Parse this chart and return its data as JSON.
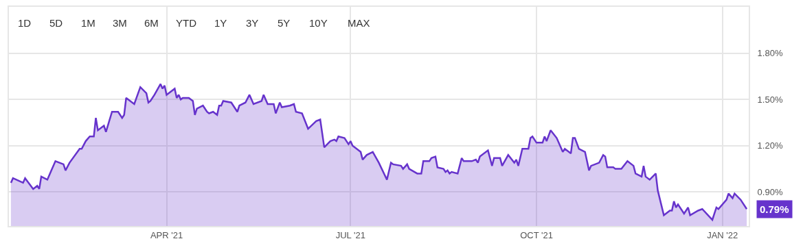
{
  "chart_data": {
    "type": "area",
    "annotations": [
      "1D",
      "5D",
      "1M",
      "3M",
      "6M",
      "YTD",
      "1Y",
      "3Y",
      "5Y",
      "10Y",
      "MAX",
      {
        "text": "0.79%",
        "x": "2022-01-13",
        "y": 0.79
      }
    ],
    "x": [
      "2021-01-14",
      "2021-01-15",
      "2021-01-20",
      "2021-01-21",
      "2021-01-25",
      "2021-01-27",
      "2021-01-28",
      "2021-01-29",
      "2021-02-01",
      "2021-02-03",
      "2021-02-05",
      "2021-02-09",
      "2021-02-10",
      "2021-02-12",
      "2021-02-17",
      "2021-02-18",
      "2021-02-20",
      "2021-02-22",
      "2021-02-24",
      "2021-02-25",
      "2021-02-26",
      "2021-03-01",
      "2021-03-02",
      "2021-03-05",
      "2021-03-08",
      "2021-03-10",
      "2021-03-11",
      "2021-03-12",
      "2021-03-16",
      "2021-03-19",
      "2021-03-22",
      "2021-03-23",
      "2021-03-24",
      "2021-03-26",
      "2021-03-29",
      "2021-03-30",
      "2021-03-31",
      "2021-04-01",
      "2021-04-05",
      "2021-04-06",
      "2021-04-07",
      "2021-04-08",
      "2021-04-09",
      "2021-04-12",
      "2021-04-14",
      "2021-04-15",
      "2021-04-16",
      "2021-04-19",
      "2021-04-21",
      "2021-04-22",
      "2021-04-24",
      "2021-04-26",
      "2021-04-27",
      "2021-04-28",
      "2021-04-29",
      "2021-05-03",
      "2021-05-06",
      "2021-05-07",
      "2021-05-10",
      "2021-05-12",
      "2021-05-14",
      "2021-05-18",
      "2021-05-19",
      "2021-05-21",
      "2021-05-24",
      "2021-05-25",
      "2021-05-27",
      "2021-05-28",
      "2021-06-01",
      "2021-06-03",
      "2021-06-04",
      "2021-06-07",
      "2021-06-10",
      "2021-06-14",
      "2021-06-16",
      "2021-06-18",
      "2021-06-21",
      "2021-06-23",
      "2021-06-24",
      "2021-06-25",
      "2021-06-28",
      "2021-06-30",
      "2021-07-01",
      "2021-07-02",
      "2021-07-06",
      "2021-07-07",
      "2021-07-09",
      "2021-07-12",
      "2021-07-15",
      "2021-07-19",
      "2021-07-21",
      "2021-07-22",
      "2021-07-26",
      "2021-07-27",
      "2021-07-29",
      "2021-07-30",
      "2021-08-03",
      "2021-08-05",
      "2021-08-06",
      "2021-08-09",
      "2021-08-10",
      "2021-08-12",
      "2021-08-13",
      "2021-08-16",
      "2021-08-17",
      "2021-08-18",
      "2021-08-19",
      "2021-08-20",
      "2021-08-23",
      "2021-08-25",
      "2021-08-26",
      "2021-08-30",
      "2021-09-01",
      "2021-09-02",
      "2021-09-03",
      "2021-09-07",
      "2021-09-09",
      "2021-09-10",
      "2021-09-13",
      "2021-09-14",
      "2021-09-17",
      "2021-09-20",
      "2021-09-21",
      "2021-09-22",
      "2021-09-24",
      "2021-09-27",
      "2021-09-28",
      "2021-09-29",
      "2021-10-01",
      "2021-10-04",
      "2021-10-05",
      "2021-10-06",
      "2021-10-08",
      "2021-10-11",
      "2021-10-14",
      "2021-10-15",
      "2021-10-18",
      "2021-10-19",
      "2021-10-20",
      "2021-10-22",
      "2021-10-25",
      "2021-10-27",
      "2021-10-28",
      "2021-11-01",
      "2021-11-03",
      "2021-11-04",
      "2021-11-05",
      "2021-11-08",
      "2021-11-09",
      "2021-11-12",
      "2021-11-15",
      "2021-11-18",
      "2021-11-19",
      "2021-11-22",
      "2021-11-23",
      "2021-11-24",
      "2021-11-26",
      "2021-11-29",
      "2021-11-30",
      "2021-12-03",
      "2021-12-06",
      "2021-12-07",
      "2021-12-08",
      "2021-12-09",
      "2021-12-10",
      "2021-12-13",
      "2021-12-15",
      "2021-12-16",
      "2021-12-20",
      "2021-12-22",
      "2021-12-27",
      "2021-12-29",
      "2021-12-30",
      "2022-01-03",
      "2022-01-04",
      "2022-01-06",
      "2022-01-07",
      "2022-01-10",
      "2022-01-13"
    ],
    "series": [
      {
        "color": "#6633cc",
        "values": [
          0.96,
          0.99,
          0.96,
          0.99,
          0.92,
          0.94,
          0.92,
          1.0,
          0.98,
          1.04,
          1.1,
          1.08,
          1.04,
          1.09,
          1.18,
          1.18,
          1.23,
          1.26,
          1.26,
          1.38,
          1.3,
          1.33,
          1.29,
          1.42,
          1.42,
          1.38,
          1.4,
          1.51,
          1.47,
          1.58,
          1.54,
          1.48,
          1.49,
          1.53,
          1.6,
          1.57,
          1.59,
          1.53,
          1.57,
          1.51,
          1.53,
          1.5,
          1.51,
          1.51,
          1.49,
          1.4,
          1.44,
          1.46,
          1.42,
          1.41,
          1.42,
          1.4,
          1.46,
          1.46,
          1.49,
          1.48,
          1.42,
          1.46,
          1.48,
          1.53,
          1.47,
          1.49,
          1.53,
          1.47,
          1.47,
          1.41,
          1.48,
          1.45,
          1.46,
          1.47,
          1.42,
          1.41,
          1.31,
          1.36,
          1.37,
          1.19,
          1.23,
          1.24,
          1.23,
          1.26,
          1.25,
          1.21,
          1.23,
          1.2,
          1.16,
          1.11,
          1.14,
          1.16,
          1.09,
          0.98,
          1.09,
          1.08,
          1.07,
          1.05,
          1.08,
          1.05,
          1.02,
          1.02,
          1.1,
          1.1,
          1.12,
          1.13,
          1.06,
          1.05,
          1.03,
          1.04,
          1.02,
          1.03,
          1.02,
          1.12,
          1.1,
          1.1,
          1.11,
          1.09,
          1.13,
          1.17,
          1.07,
          1.12,
          1.12,
          1.07,
          1.14,
          1.09,
          1.11,
          1.07,
          1.18,
          1.18,
          1.25,
          1.26,
          1.22,
          1.22,
          1.26,
          1.23,
          1.3,
          1.25,
          1.16,
          1.18,
          1.15,
          1.25,
          1.25,
          1.18,
          1.16,
          1.04,
          1.07,
          1.09,
          1.14,
          1.13,
          1.06,
          1.06,
          1.05,
          1.05,
          1.1,
          1.07,
          1.02,
          1.0,
          1.07,
          1.0,
          0.98,
          1.02,
          0.91,
          0.75,
          0.78,
          0.78,
          0.84,
          0.8,
          0.82,
          0.76,
          0.8,
          0.75,
          0.78,
          0.79,
          0.72,
          0.8,
          0.79,
          0.85,
          0.89,
          0.86,
          0.89,
          0.85,
          0.79
        ]
      }
    ],
    "xlim": [
      "2021-01-13",
      "2022-01-14"
    ],
    "xticks": [
      {
        "value": "2021-04-01",
        "label": "APR '21"
      },
      {
        "value": "2021-07-01",
        "label": "JUL '21"
      },
      {
        "value": "2021-10-01",
        "label": "OCT '21"
      },
      {
        "value": "2022-01-01",
        "label": "JAN '22"
      }
    ],
    "ylim": [
      0.68,
      2.1
    ],
    "yticks": [
      {
        "value": 0.9,
        "label": "0.90%"
      },
      {
        "value": 1.2,
        "label": "1.20%"
      },
      {
        "value": 1.5,
        "label": "1.50%"
      },
      {
        "value": 1.8,
        "label": "1.80%"
      }
    ],
    "grid": true,
    "legend": false,
    "marker": "none",
    "line_style": "solid"
  }
}
